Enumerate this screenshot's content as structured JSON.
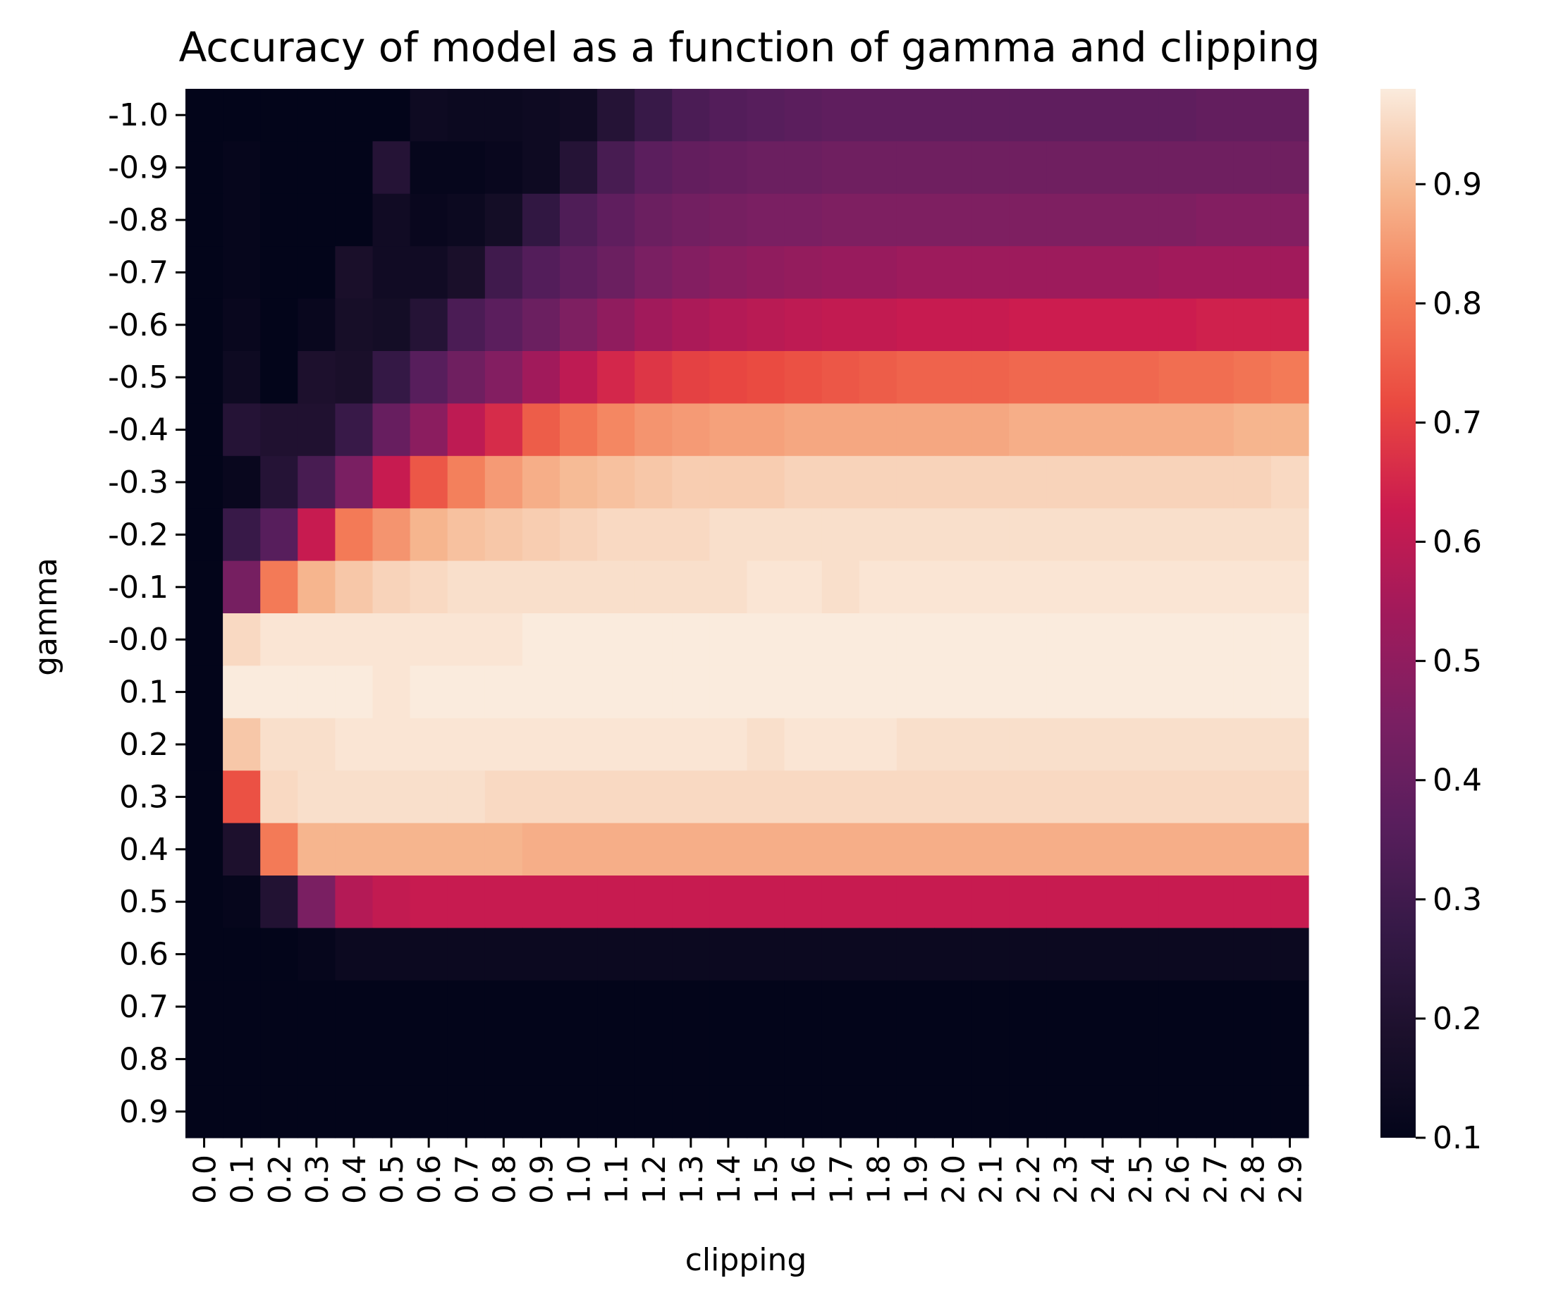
{
  "chart_data": {
    "type": "heatmap",
    "title": "Accuracy of model as a function of gamma and clipping",
    "xlabel": "clipping",
    "ylabel": "gamma",
    "x_ticks": [
      "0.0",
      "0.1",
      "0.2",
      "0.3",
      "0.4",
      "0.5",
      "0.6",
      "0.7",
      "0.8",
      "0.9",
      "1.0",
      "1.1",
      "1.2",
      "1.3",
      "1.4",
      "1.5",
      "1.6",
      "1.7",
      "1.8",
      "1.9",
      "2.0",
      "2.1",
      "2.2",
      "2.3",
      "2.4",
      "2.5",
      "2.6",
      "2.7",
      "2.8",
      "2.9"
    ],
    "y_ticks": [
      "-1.0",
      "-0.9",
      "-0.8",
      "-0.7",
      "-0.6",
      "-0.5",
      "-0.4",
      "-0.3",
      "-0.2",
      "-0.1",
      "-0.0",
      "0.1",
      "0.2",
      "0.3",
      "0.4",
      "0.5",
      "0.6",
      "0.7",
      "0.8",
      "0.9"
    ],
    "colorbar": {
      "colormap": "rocket",
      "vmin": 0.1,
      "vmax": 0.98,
      "ticks": [
        "0.1",
        "0.2",
        "0.3",
        "0.4",
        "0.5",
        "0.6",
        "0.7",
        "0.8",
        "0.9"
      ]
    },
    "values": [
      [
        0.1,
        0.1,
        0.1,
        0.1,
        0.1,
        0.1,
        0.14,
        0.13,
        0.13,
        0.14,
        0.15,
        0.22,
        0.28,
        0.33,
        0.35,
        0.36,
        0.37,
        0.38,
        0.38,
        0.38,
        0.38,
        0.38,
        0.38,
        0.38,
        0.38,
        0.38,
        0.38,
        0.39,
        0.39,
        0.39
      ],
      [
        0.1,
        0.11,
        0.1,
        0.1,
        0.1,
        0.22,
        0.11,
        0.11,
        0.12,
        0.14,
        0.22,
        0.32,
        0.37,
        0.39,
        0.4,
        0.41,
        0.41,
        0.42,
        0.42,
        0.42,
        0.42,
        0.42,
        0.42,
        0.42,
        0.42,
        0.42,
        0.42,
        0.42,
        0.42,
        0.42
      ],
      [
        0.1,
        0.11,
        0.1,
        0.1,
        0.1,
        0.15,
        0.12,
        0.13,
        0.16,
        0.26,
        0.34,
        0.38,
        0.41,
        0.43,
        0.44,
        0.45,
        0.45,
        0.46,
        0.46,
        0.46,
        0.46,
        0.46,
        0.46,
        0.46,
        0.46,
        0.46,
        0.46,
        0.47,
        0.47,
        0.47
      ],
      [
        0.1,
        0.11,
        0.1,
        0.1,
        0.18,
        0.15,
        0.15,
        0.18,
        0.3,
        0.35,
        0.38,
        0.41,
        0.45,
        0.47,
        0.49,
        0.5,
        0.51,
        0.52,
        0.52,
        0.53,
        0.53,
        0.53,
        0.53,
        0.53,
        0.53,
        0.53,
        0.54,
        0.54,
        0.54,
        0.54
      ],
      [
        0.1,
        0.12,
        0.1,
        0.12,
        0.17,
        0.16,
        0.22,
        0.33,
        0.37,
        0.41,
        0.46,
        0.5,
        0.54,
        0.56,
        0.58,
        0.59,
        0.6,
        0.61,
        0.61,
        0.62,
        0.62,
        0.62,
        0.63,
        0.63,
        0.63,
        0.63,
        0.63,
        0.64,
        0.64,
        0.64
      ],
      [
        0.1,
        0.14,
        0.1,
        0.19,
        0.18,
        0.27,
        0.36,
        0.42,
        0.47,
        0.54,
        0.6,
        0.65,
        0.68,
        0.7,
        0.71,
        0.72,
        0.73,
        0.74,
        0.75,
        0.76,
        0.76,
        0.76,
        0.77,
        0.77,
        0.77,
        0.77,
        0.78,
        0.78,
        0.79,
        0.8
      ],
      [
        0.1,
        0.22,
        0.2,
        0.2,
        0.28,
        0.4,
        0.49,
        0.6,
        0.66,
        0.75,
        0.79,
        0.82,
        0.84,
        0.85,
        0.86,
        0.86,
        0.87,
        0.87,
        0.87,
        0.87,
        0.87,
        0.87,
        0.88,
        0.88,
        0.88,
        0.88,
        0.88,
        0.88,
        0.89,
        0.89
      ],
      [
        0.1,
        0.12,
        0.22,
        0.32,
        0.45,
        0.62,
        0.74,
        0.81,
        0.85,
        0.88,
        0.9,
        0.91,
        0.92,
        0.93,
        0.93,
        0.93,
        0.94,
        0.94,
        0.94,
        0.94,
        0.94,
        0.94,
        0.94,
        0.94,
        0.94,
        0.94,
        0.94,
        0.94,
        0.94,
        0.95
      ],
      [
        0.1,
        0.28,
        0.36,
        0.62,
        0.8,
        0.84,
        0.89,
        0.91,
        0.92,
        0.93,
        0.94,
        0.95,
        0.95,
        0.95,
        0.96,
        0.96,
        0.96,
        0.96,
        0.96,
        0.96,
        0.96,
        0.96,
        0.96,
        0.96,
        0.96,
        0.96,
        0.96,
        0.96,
        0.96,
        0.96
      ],
      [
        0.1,
        0.44,
        0.8,
        0.89,
        0.92,
        0.94,
        0.95,
        0.96,
        0.96,
        0.96,
        0.96,
        0.96,
        0.96,
        0.96,
        0.96,
        0.97,
        0.97,
        0.96,
        0.97,
        0.97,
        0.97,
        0.97,
        0.97,
        0.97,
        0.97,
        0.97,
        0.97,
        0.97,
        0.97,
        0.97
      ],
      [
        0.1,
        0.95,
        0.97,
        0.97,
        0.97,
        0.97,
        0.97,
        0.97,
        0.97,
        0.98,
        0.98,
        0.98,
        0.98,
        0.98,
        0.98,
        0.98,
        0.98,
        0.98,
        0.98,
        0.98,
        0.98,
        0.98,
        0.98,
        0.98,
        0.98,
        0.98,
        0.98,
        0.98,
        0.98,
        0.98
      ],
      [
        0.1,
        0.98,
        0.98,
        0.98,
        0.98,
        0.97,
        0.98,
        0.98,
        0.98,
        0.98,
        0.98,
        0.98,
        0.98,
        0.98,
        0.98,
        0.98,
        0.98,
        0.98,
        0.98,
        0.98,
        0.98,
        0.98,
        0.98,
        0.98,
        0.98,
        0.98,
        0.98,
        0.98,
        0.98,
        0.98
      ],
      [
        0.1,
        0.92,
        0.96,
        0.96,
        0.97,
        0.97,
        0.97,
        0.97,
        0.97,
        0.97,
        0.97,
        0.97,
        0.97,
        0.97,
        0.97,
        0.96,
        0.97,
        0.97,
        0.97,
        0.96,
        0.96,
        0.96,
        0.96,
        0.96,
        0.96,
        0.96,
        0.96,
        0.96,
        0.96,
        0.96
      ],
      [
        0.1,
        0.73,
        0.95,
        0.96,
        0.96,
        0.96,
        0.96,
        0.96,
        0.95,
        0.95,
        0.95,
        0.95,
        0.95,
        0.95,
        0.95,
        0.95,
        0.95,
        0.95,
        0.95,
        0.95,
        0.95,
        0.95,
        0.95,
        0.95,
        0.95,
        0.95,
        0.95,
        0.95,
        0.95,
        0.95
      ],
      [
        0.1,
        0.19,
        0.8,
        0.89,
        0.89,
        0.89,
        0.89,
        0.89,
        0.89,
        0.88,
        0.88,
        0.88,
        0.88,
        0.88,
        0.88,
        0.88,
        0.88,
        0.88,
        0.88,
        0.88,
        0.88,
        0.88,
        0.88,
        0.88,
        0.88,
        0.88,
        0.88,
        0.88,
        0.88,
        0.88
      ],
      [
        0.1,
        0.11,
        0.21,
        0.45,
        0.58,
        0.61,
        0.62,
        0.62,
        0.62,
        0.62,
        0.62,
        0.62,
        0.62,
        0.62,
        0.62,
        0.62,
        0.62,
        0.62,
        0.62,
        0.62,
        0.62,
        0.62,
        0.62,
        0.62,
        0.62,
        0.62,
        0.62,
        0.62,
        0.62,
        0.62
      ],
      [
        0.1,
        0.1,
        0.1,
        0.11,
        0.13,
        0.13,
        0.13,
        0.13,
        0.13,
        0.13,
        0.13,
        0.13,
        0.13,
        0.13,
        0.13,
        0.13,
        0.13,
        0.13,
        0.13,
        0.13,
        0.13,
        0.13,
        0.13,
        0.13,
        0.13,
        0.13,
        0.13,
        0.13,
        0.13,
        0.13
      ],
      [
        0.1,
        0.1,
        0.1,
        0.1,
        0.1,
        0.1,
        0.1,
        0.1,
        0.1,
        0.1,
        0.1,
        0.1,
        0.1,
        0.1,
        0.1,
        0.1,
        0.1,
        0.1,
        0.1,
        0.1,
        0.1,
        0.1,
        0.1,
        0.1,
        0.1,
        0.1,
        0.1,
        0.1,
        0.1,
        0.1
      ],
      [
        0.1,
        0.1,
        0.1,
        0.1,
        0.1,
        0.1,
        0.1,
        0.1,
        0.1,
        0.1,
        0.1,
        0.1,
        0.1,
        0.1,
        0.1,
        0.1,
        0.1,
        0.1,
        0.1,
        0.1,
        0.1,
        0.1,
        0.1,
        0.1,
        0.1,
        0.1,
        0.1,
        0.1,
        0.1,
        0.1
      ],
      [
        0.1,
        0.1,
        0.1,
        0.1,
        0.1,
        0.1,
        0.1,
        0.1,
        0.1,
        0.1,
        0.1,
        0.1,
        0.1,
        0.1,
        0.1,
        0.1,
        0.1,
        0.1,
        0.1,
        0.1,
        0.1,
        0.1,
        0.1,
        0.1,
        0.1,
        0.1,
        0.1,
        0.1,
        0.1,
        0.1
      ]
    ]
  }
}
